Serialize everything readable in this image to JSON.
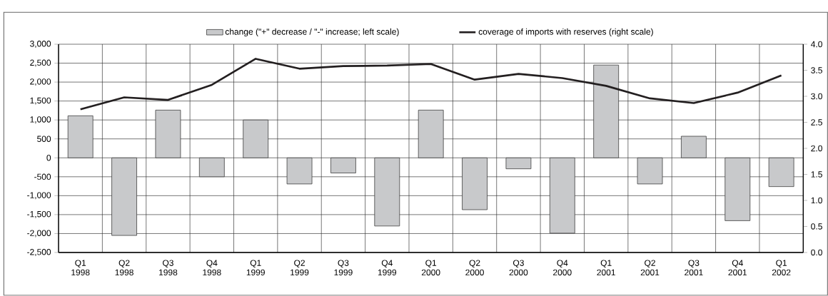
{
  "chart_data": {
    "type": "bar",
    "categories": [
      "Q1 1998",
      "Q2 1998",
      "Q3 1998",
      "Q4 1998",
      "Q1 1999",
      "Q2 1999",
      "Q3 1999",
      "Q4 1999",
      "Q1 2000",
      "Q2 2000",
      "Q3 2000",
      "Q4 2000",
      "Q1 2001",
      "Q2 2001",
      "Q3 2001",
      "Q4 2001",
      "Q1 2002"
    ],
    "series": [
      {
        "name": "change (\"+\" decrease / \"-\" increase; left scale)",
        "color": "#c8c9cb",
        "values": [
          1110,
          -2050,
          1260,
          -500,
          1000,
          -690,
          -400,
          -1800,
          1260,
          -1370,
          -290,
          -1990,
          2450,
          -690,
          570,
          -1660,
          -760
        ]
      },
      {
        "name": "coverage of imports with reserves (right scale)",
        "type": "line",
        "axis": "y2",
        "color": "#231f20",
        "values": [
          2.75,
          2.98,
          2.93,
          3.22,
          3.72,
          3.53,
          3.58,
          3.59,
          3.62,
          3.32,
          3.43,
          3.35,
          3.2,
          2.96,
          2.87,
          3.07,
          3.4
        ]
      }
    ],
    "ylim": [
      -2500,
      3000
    ],
    "yticks": [
      {
        "value": -2500,
        "label": "-2,500"
      },
      {
        "value": -2000,
        "label": "-2,000"
      },
      {
        "value": -1500,
        "label": "-1,500"
      },
      {
        "value": -1000,
        "label": "-1,000"
      },
      {
        "value": -500,
        "label": "-500"
      },
      0,
      500,
      {
        "value": 1000,
        "label": "1,000"
      },
      {
        "value": 1500,
        "label": "1,500"
      },
      {
        "value": 2000,
        "label": "2,000"
      },
      {
        "value": 2500,
        "label": "2,500"
      },
      {
        "value": 3000,
        "label": "3,000"
      }
    ],
    "y2lim": [
      0,
      4
    ],
    "y2ticks": [
      {
        "value": 0,
        "label": "0.0"
      },
      0.5,
      {
        "value": 1,
        "label": "1.0"
      },
      1.5,
      {
        "value": 2,
        "label": "2.0"
      },
      2.5,
      {
        "value": 3,
        "label": "3.0"
      },
      3.5,
      {
        "value": 4,
        "label": "4.0"
      }
    ],
    "grid": true,
    "legend": "top",
    "marker": "none",
    "line_style": "solid"
  }
}
